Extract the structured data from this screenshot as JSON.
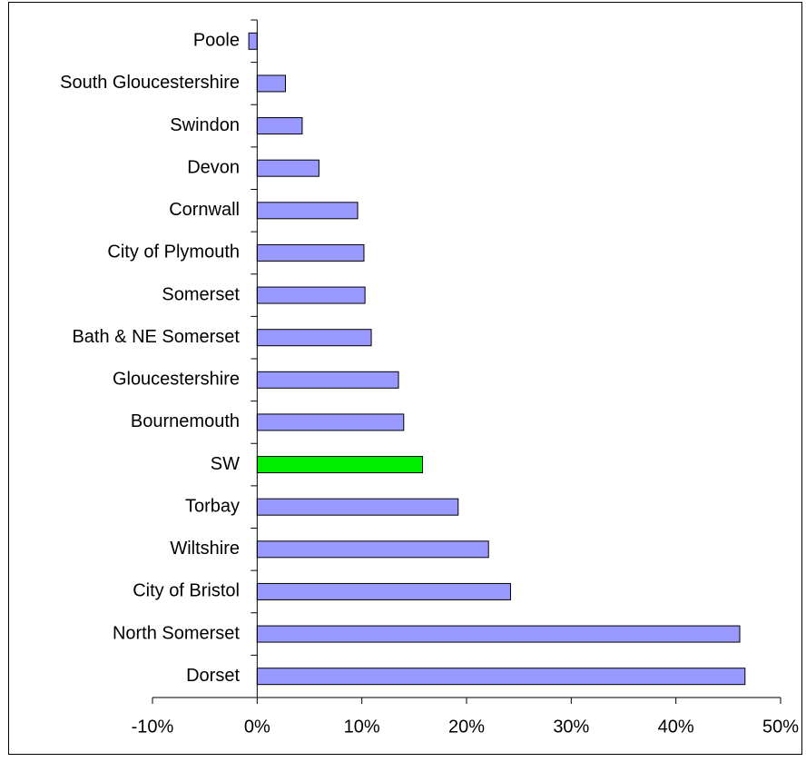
{
  "chart_data": {
    "type": "bar",
    "orientation": "horizontal",
    "categories": [
      "Poole",
      "South Gloucestershire",
      "Swindon",
      "Devon",
      "Cornwall",
      "City of Plymouth",
      "Somerset",
      "Bath & NE Somerset",
      "Gloucestershire",
      "Bournemouth",
      "SW",
      "Torbay",
      "Wiltshire",
      "City of Bristol",
      "North Somerset",
      "Dorset"
    ],
    "values": [
      -0.8,
      2.7,
      4.3,
      5.9,
      9.6,
      10.2,
      10.3,
      10.9,
      13.5,
      14.0,
      15.8,
      19.2,
      22.1,
      24.2,
      46.1,
      46.6
    ],
    "colors": [
      "#9999ff",
      "#9999ff",
      "#9999ff",
      "#9999ff",
      "#9999ff",
      "#9999ff",
      "#9999ff",
      "#9999ff",
      "#9999ff",
      "#9999ff",
      "#00ee00",
      "#9999ff",
      "#9999ff",
      "#9999ff",
      "#9999ff",
      "#9999ff"
    ],
    "xlim": [
      -10,
      50
    ],
    "xticks": [
      {
        "value": -10,
        "label": "-10%"
      },
      {
        "value": 0,
        "label": "0%"
      },
      {
        "value": 10,
        "label": "10%"
      },
      {
        "value": 20,
        "label": "20%"
      },
      {
        "value": 30,
        "label": "30%"
      },
      {
        "value": 40,
        "label": "40%"
      },
      {
        "value": 50,
        "label": "50%"
      }
    ],
    "grid": false
  }
}
